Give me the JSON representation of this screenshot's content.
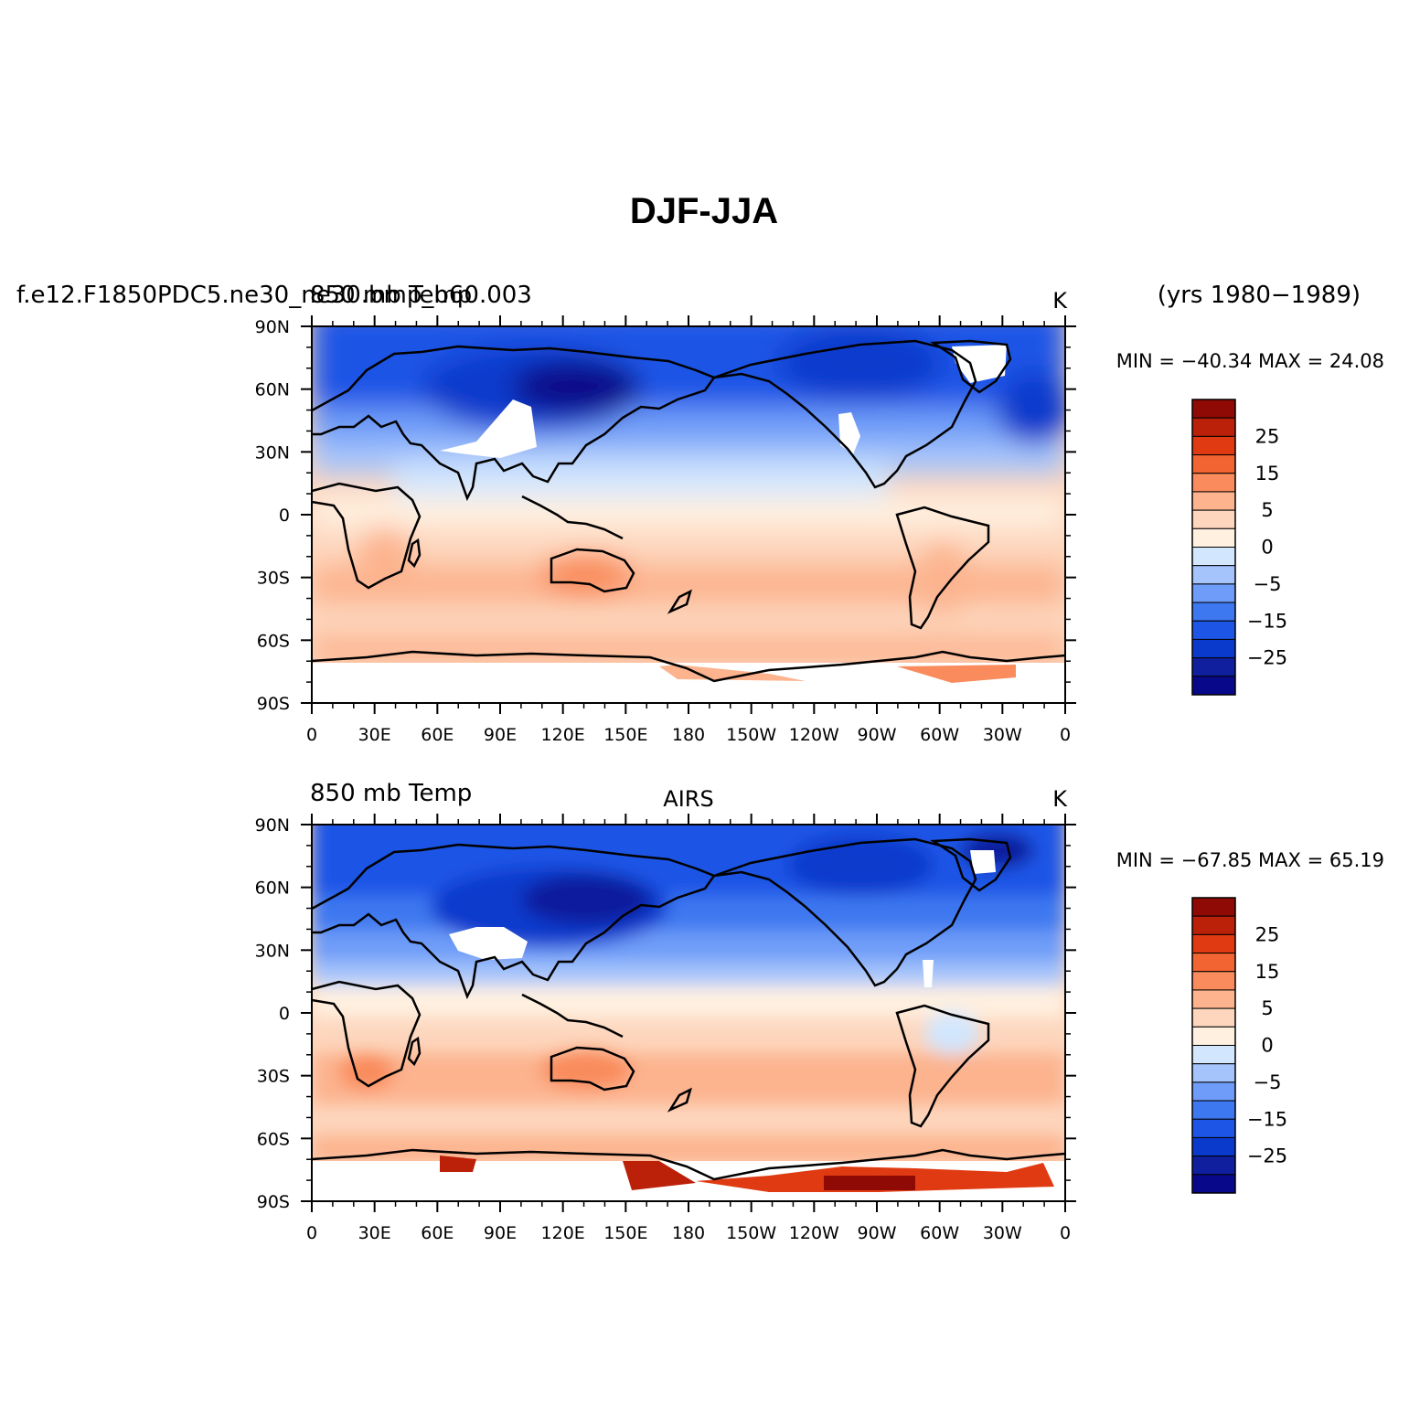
{
  "title": "DJF-JJA",
  "years_label": "(yrs 1980−1989)",
  "colorbar": {
    "colors": [
      "#08088a",
      "#0f1f9e",
      "#0a3acc",
      "#1d55e6",
      "#3e78f0",
      "#6e9cf8",
      "#a5c4fb",
      "#d2e6fd",
      "#fff0e0",
      "#fdd6bd",
      "#fcb38e",
      "#f98b5c",
      "#f26431",
      "#e03a12",
      "#bb2008",
      "#8f0a05"
    ],
    "tick_labels": [
      "25",
      "15",
      "5",
      "0",
      "−5",
      "−15",
      "−25"
    ]
  },
  "lon_labels": [
    "0",
    "30E",
    "60E",
    "90E",
    "120E",
    "150E",
    "180",
    "150W",
    "120W",
    "90W",
    "60W",
    "30W",
    "0"
  ],
  "lat_labels": [
    "90N",
    "60N",
    "30N",
    "0",
    "30S",
    "60S",
    "90S"
  ],
  "panels": [
    {
      "left_label": "f.e12.F1850PDC5.ne30_ne30.bmp_b60.003",
      "left_label_overlay": "850 mb Temp",
      "center_label": "",
      "units": "K",
      "stats": "MIN = −40.34  MAX =  24.08"
    },
    {
      "left_label": "850 mb Temp",
      "center_label": "AIRS",
      "units": "K",
      "stats": "MIN = −67.85  MAX =  65.19"
    }
  ]
}
